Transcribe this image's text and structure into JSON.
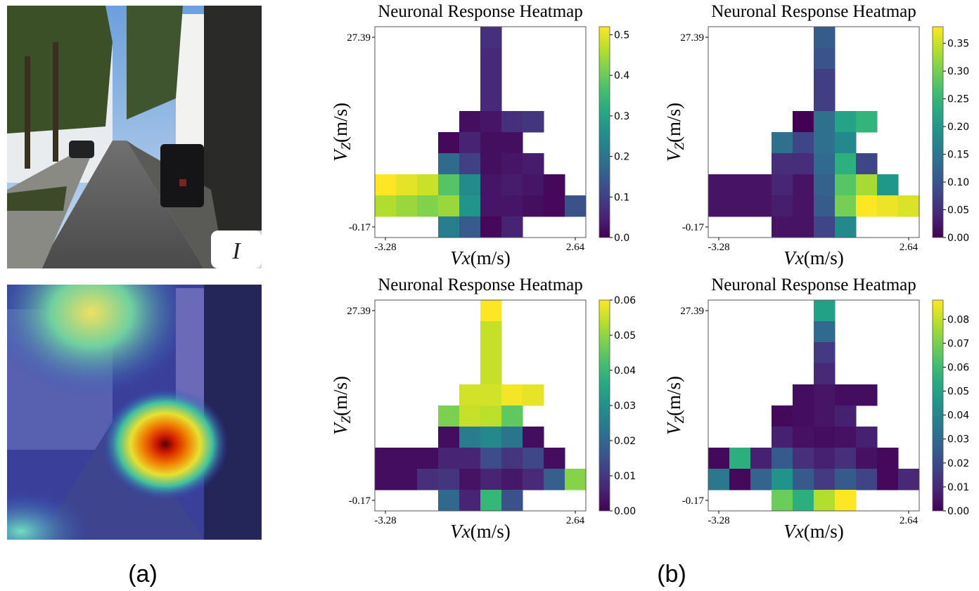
{
  "figure": {
    "caption_a": "(a)",
    "caption_b": "(b)",
    "image_label": "I"
  },
  "chart_data": [
    {
      "type": "heatmap",
      "title": "Neuronal Response Heatmap",
      "xlabel": {
        "var": "V",
        "sub": "x",
        "unit": "(m/s)"
      },
      "ylabel": {
        "var": "V",
        "sub": "Z",
        "unit": "(m/s)"
      },
      "xticks": [
        "-3.28",
        "2.64"
      ],
      "yticks": [
        "27.39",
        "-0.17"
      ],
      "colormap": "viridis",
      "colorbar_range": [
        0,
        0.52
      ],
      "colorbar_ticks": [
        "0.0",
        "0.1",
        "0.2",
        "0.3",
        "0.4",
        "0.5"
      ],
      "matrix": [
        [
          null,
          null,
          null,
          null,
          null,
          0.07,
          null,
          null,
          null,
          null
        ],
        [
          null,
          null,
          null,
          null,
          null,
          0.06,
          null,
          null,
          null,
          null
        ],
        [
          null,
          null,
          null,
          null,
          null,
          0.06,
          null,
          null,
          null,
          null
        ],
        [
          null,
          null,
          null,
          null,
          null,
          0.06,
          null,
          null,
          null,
          null
        ],
        [
          null,
          null,
          null,
          null,
          0.02,
          0.03,
          0.07,
          0.08,
          null,
          null
        ],
        [
          null,
          null,
          null,
          0.01,
          0.05,
          0.02,
          0.02,
          null,
          null,
          null
        ],
        [
          null,
          null,
          null,
          0.18,
          0.1,
          0.02,
          0.03,
          0.04,
          null,
          null
        ],
        [
          0.52,
          0.5,
          0.48,
          0.38,
          0.25,
          0.03,
          0.04,
          0.03,
          0.01,
          null
        ],
        [
          0.46,
          0.44,
          0.42,
          0.44,
          0.27,
          0.03,
          0.03,
          0.02,
          0.01,
          0.13
        ],
        [
          null,
          null,
          null,
          0.22,
          0.15,
          0.01,
          0.05,
          null,
          null,
          null
        ]
      ]
    },
    {
      "type": "heatmap",
      "title": "Neuronal Response Heatmap",
      "xlabel": {
        "var": "V",
        "sub": "x",
        "unit": "(m/s)"
      },
      "ylabel": {
        "var": "V",
        "sub": "Z",
        "unit": "(m/s)"
      },
      "xticks": [
        "-3.28",
        "2.64"
      ],
      "yticks": [
        "27.39",
        "-0.17"
      ],
      "colormap": "viridis",
      "colorbar_range": [
        0,
        0.38
      ],
      "colorbar_ticks": [
        "0.00",
        "0.05",
        "0.10",
        "0.15",
        "0.20",
        "0.25",
        "0.30",
        "0.35"
      ],
      "matrix": [
        [
          null,
          null,
          null,
          null,
          null,
          0.11,
          null,
          null,
          null,
          null
        ],
        [
          null,
          null,
          null,
          null,
          null,
          0.1,
          null,
          null,
          null,
          null
        ],
        [
          null,
          null,
          null,
          null,
          null,
          0.07,
          null,
          null,
          null,
          null
        ],
        [
          null,
          null,
          null,
          null,
          null,
          0.07,
          null,
          null,
          null,
          null
        ],
        [
          null,
          null,
          null,
          null,
          0.0,
          0.14,
          0.22,
          0.25,
          null,
          null
        ],
        [
          null,
          null,
          null,
          0.14,
          0.08,
          0.14,
          0.18,
          null,
          null,
          null
        ],
        [
          null,
          null,
          null,
          0.05,
          0.05,
          0.13,
          0.24,
          0.08,
          null,
          null
        ],
        [
          0.02,
          0.02,
          0.02,
          0.04,
          0.02,
          0.12,
          0.28,
          0.33,
          0.2,
          null
        ],
        [
          0.02,
          0.02,
          0.02,
          0.03,
          0.02,
          0.11,
          0.3,
          0.38,
          0.37,
          0.36
        ],
        [
          null,
          null,
          null,
          0.02,
          0.02,
          0.08,
          0.18,
          null,
          null,
          null
        ]
      ]
    },
    {
      "type": "heatmap",
      "title": "Neuronal Response Heatmap",
      "xlabel": {
        "var": "V",
        "sub": "x",
        "unit": "(m/s)"
      },
      "ylabel": {
        "var": "V",
        "sub": "Z",
        "unit": "(m/s)"
      },
      "xticks": [
        "-3.28",
        "2.64"
      ],
      "yticks": [
        "27.39",
        "-0.17"
      ],
      "colormap": "viridis",
      "colorbar_range": [
        0,
        0.06
      ],
      "colorbar_ticks": [
        "0.00",
        "0.01",
        "0.02",
        "0.03",
        "0.04",
        "0.05",
        "0.06"
      ],
      "matrix": [
        [
          null,
          null,
          null,
          null,
          null,
          0.06,
          null,
          null,
          null,
          null
        ],
        [
          null,
          null,
          null,
          null,
          null,
          0.055,
          null,
          null,
          null,
          null
        ],
        [
          null,
          null,
          null,
          null,
          null,
          0.055,
          null,
          null,
          null,
          null
        ],
        [
          null,
          null,
          null,
          null,
          null,
          0.055,
          null,
          null,
          null,
          null
        ],
        [
          null,
          null,
          null,
          null,
          0.056,
          0.056,
          0.059,
          0.058,
          null,
          null
        ],
        [
          null,
          null,
          null,
          0.048,
          0.055,
          0.054,
          0.045,
          null,
          null,
          null
        ],
        [
          null,
          null,
          null,
          0.002,
          0.025,
          0.028,
          0.023,
          0.002,
          null,
          null
        ],
        [
          0.002,
          0.002,
          0.002,
          0.006,
          0.006,
          0.014,
          0.009,
          0.013,
          0.002,
          null
        ],
        [
          0.002,
          0.002,
          0.008,
          0.009,
          0.003,
          0.006,
          0.004,
          0.007,
          0.018,
          0.049
        ],
        [
          null,
          null,
          null,
          0.02,
          0.006,
          0.04,
          0.015,
          null,
          null,
          null
        ]
      ]
    },
    {
      "type": "heatmap",
      "title": "Neuronal Response Heatmap",
      "xlabel": {
        "var": "V",
        "sub": "x",
        "unit": "(m/s)"
      },
      "ylabel": {
        "var": "V",
        "sub": "Z",
        "unit": "(m/s)"
      },
      "xticks": [
        "-3.28",
        "2.64"
      ],
      "yticks": [
        "27.39",
        "-0.17"
      ],
      "colormap": "viridis",
      "colorbar_range": [
        0,
        0.088
      ],
      "colorbar_ticks": [
        "0.00",
        "0.01",
        "0.02",
        "0.03",
        "0.04",
        "0.05",
        "0.06",
        "0.07",
        "0.08"
      ],
      "matrix": [
        [
          null,
          null,
          null,
          null,
          null,
          0.05,
          null,
          null,
          null,
          null
        ],
        [
          null,
          null,
          null,
          null,
          null,
          0.03,
          null,
          null,
          null,
          null
        ],
        [
          null,
          null,
          null,
          null,
          null,
          0.015,
          null,
          null,
          null,
          null
        ],
        [
          null,
          null,
          null,
          null,
          null,
          0.01,
          null,
          null,
          null,
          null
        ],
        [
          null,
          null,
          null,
          null,
          0.003,
          0.005,
          0.003,
          0.003,
          null,
          null
        ],
        [
          null,
          null,
          null,
          0.002,
          0.003,
          0.005,
          0.008,
          null,
          null,
          null
        ],
        [
          null,
          null,
          null,
          0.008,
          0.004,
          0.003,
          0.004,
          0.008,
          null,
          null
        ],
        [
          0.002,
          0.055,
          0.008,
          0.025,
          0.012,
          0.008,
          0.012,
          0.004,
          0.002,
          null
        ],
        [
          0.035,
          0.002,
          0.028,
          0.045,
          0.025,
          0.015,
          0.025,
          0.018,
          0.002,
          0.01
        ],
        [
          null,
          null,
          null,
          0.068,
          0.055,
          0.078,
          0.088,
          null,
          null,
          null
        ]
      ]
    }
  ]
}
